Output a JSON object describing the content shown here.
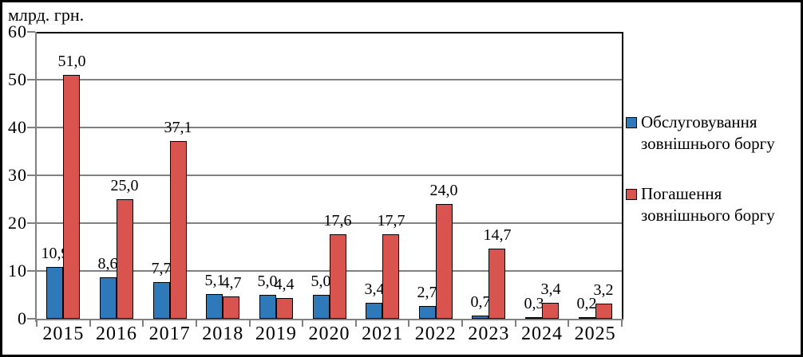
{
  "chart_data": {
    "type": "bar",
    "title": "млрд. грн.",
    "categories": [
      "2015",
      "2016",
      "2017",
      "2018",
      "2019",
      "2020",
      "2021",
      "2022",
      "2023",
      "2024",
      "2025"
    ],
    "series": [
      {
        "name": "Обслуговування зовнішнього боргу",
        "color": "#2E79B9",
        "values": [
          10.9,
          8.6,
          7.7,
          5.1,
          5.0,
          5.0,
          3.4,
          2.7,
          0.7,
          0.3,
          0.2
        ],
        "labels": [
          "10,9",
          "8,6",
          "7,7",
          "5,1",
          "5,0",
          "5,0",
          "3,4",
          "2,7",
          "0,7",
          "0,3",
          "0,2"
        ]
      },
      {
        "name": "Погашення зовнішнього боргу",
        "color": "#D9534F",
        "values": [
          51.0,
          25.0,
          37.1,
          4.7,
          4.4,
          17.6,
          17.7,
          24.0,
          14.7,
          3.4,
          3.2
        ],
        "labels": [
          "51,0",
          "25,0",
          "37,1",
          "4,7",
          "4,4",
          "17,6",
          "17,7",
          "24,0",
          "14,7",
          "3,4",
          "3,2"
        ]
      }
    ],
    "ylim": [
      0,
      60
    ],
    "yticks": [
      0,
      10,
      20,
      30,
      40,
      50,
      60
    ],
    "ytick_labels": [
      "0",
      "10",
      "20",
      "30",
      "40",
      "50",
      "60"
    ],
    "grid": true,
    "legend_position": "right",
    "legend": [
      {
        "lines": [
          "Обслуговування",
          "зовнішнього боргу"
        ],
        "color": "#2E79B9"
      },
      {
        "lines": [
          "Погашення",
          "зовнішнього боргу"
        ],
        "color": "#D9534F"
      }
    ],
    "colors": {
      "background": "#FFFFFF",
      "text": "#000000",
      "grid": "#808080",
      "axis": "#808080",
      "plot_border": "#000000",
      "bar_border": "#000000"
    }
  }
}
